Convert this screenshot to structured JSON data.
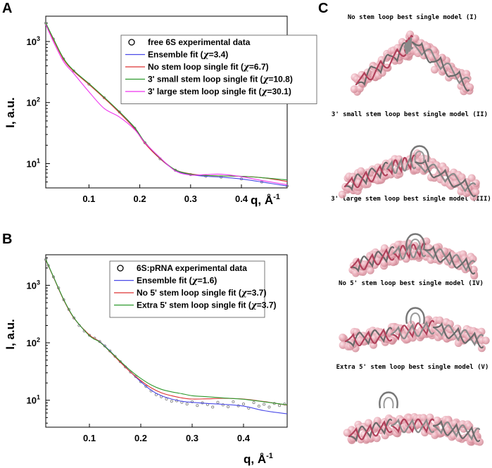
{
  "panel_c": {
    "letter": "C",
    "models": [
      {
        "title": "No stem loop best single model (I)"
      },
      {
        "title": "3' small stem loop best single model (II)"
      },
      {
        "title": "3' large stem loop best single model (III)"
      },
      {
        "title": "No 5' stem loop best single model (IV)"
      },
      {
        "title": "Extra 5' stem loop best single model (V)"
      }
    ]
  },
  "chart_data": [
    {
      "type": "line",
      "panel": "A",
      "title": "",
      "xlabel": "q, Å",
      "xlabel_sup": "-1",
      "ylabel": "I, a.u.",
      "xscale": "linear",
      "yscale": "log",
      "xlim": [
        0.015,
        0.49
      ],
      "ylim": [
        4,
        2600
      ],
      "xticks": [
        0.1,
        0.2,
        0.3,
        0.4
      ],
      "xtick_labels": [
        "0.1",
        "0.2",
        "0.3",
        "0.4"
      ],
      "yticks": [
        10,
        100,
        1000
      ],
      "ytick_labels": [
        "10",
        "10",
        "10"
      ],
      "ytick_exps": [
        "1",
        "2",
        "3"
      ],
      "legend_position": "top-right",
      "experimental": {
        "name": "free 6S experimental data",
        "marker": "open-circle",
        "color": "#888888",
        "x": [
          0.015,
          0.03,
          0.05,
          0.07,
          0.1,
          0.13,
          0.16,
          0.19,
          0.21,
          0.24,
          0.27,
          0.3,
          0.33,
          0.36,
          0.4,
          0.44,
          0.49
        ],
        "y": [
          2000,
          1100,
          520,
          330,
          200,
          120,
          70,
          38,
          22,
          12,
          7.8,
          6.6,
          6.2,
          6.0,
          5.6,
          5.0,
          4.3
        ]
      },
      "series": [
        {
          "name": "Ensemble fit",
          "chi": "3.4",
          "color": "#4a4ae8",
          "x": [
            0.015,
            0.03,
            0.05,
            0.07,
            0.1,
            0.13,
            0.16,
            0.19,
            0.21,
            0.24,
            0.27,
            0.3,
            0.33,
            0.36,
            0.4,
            0.44,
            0.49
          ],
          "y": [
            2000,
            1100,
            520,
            330,
            200,
            120,
            70,
            38,
            22,
            12,
            7.8,
            6.6,
            6.2,
            6.0,
            5.6,
            5.0,
            4.3
          ]
        },
        {
          "name": "No stem loop single fit",
          "chi": "6.7",
          "color": "#dd3333",
          "x": [
            0.015,
            0.03,
            0.05,
            0.07,
            0.1,
            0.13,
            0.16,
            0.19,
            0.21,
            0.24,
            0.27,
            0.3,
            0.33,
            0.36,
            0.4,
            0.44,
            0.49
          ],
          "y": [
            1980,
            1080,
            510,
            325,
            198,
            118,
            68,
            37,
            21.5,
            12,
            7.9,
            6.8,
            6.4,
            6.3,
            6.2,
            5.9,
            5.1
          ]
        },
        {
          "name": "3' small stem loop single fit",
          "chi": "10.8",
          "color": "#2e9a2e",
          "x": [
            0.015,
            0.03,
            0.05,
            0.07,
            0.1,
            0.13,
            0.16,
            0.19,
            0.21,
            0.24,
            0.27,
            0.3,
            0.33,
            0.36,
            0.4,
            0.44,
            0.49
          ],
          "y": [
            2020,
            1120,
            530,
            335,
            205,
            122,
            71,
            39,
            22.5,
            12.3,
            7.9,
            6.7,
            6.4,
            6.3,
            6.2,
            5.9,
            5.4
          ]
        },
        {
          "name": "3' large stem loop single fit",
          "chi": "30.1",
          "color": "#ee33ee",
          "x": [
            0.015,
            0.03,
            0.05,
            0.07,
            0.1,
            0.13,
            0.16,
            0.19,
            0.21,
            0.24,
            0.27,
            0.3,
            0.33,
            0.36,
            0.4,
            0.44,
            0.49
          ],
          "y": [
            1900,
            1000,
            470,
            300,
            150,
            80,
            58,
            36,
            22,
            12.5,
            7.6,
            6.5,
            6.6,
            6.7,
            6.1,
            5.3,
            4.5
          ]
        }
      ]
    },
    {
      "type": "line",
      "panel": "B",
      "title": "",
      "xlabel": "q, Å",
      "xlabel_sup": "-1",
      "ylabel": "I, a.u.",
      "xscale": "linear",
      "yscale": "log",
      "xlim": [
        0.015,
        0.485
      ],
      "ylim": [
        3.4,
        3400
      ],
      "xticks": [
        0.1,
        0.2,
        0.3,
        0.4
      ],
      "xtick_labels": [
        "0.1",
        "0.2",
        "0.3",
        "0.4"
      ],
      "yticks": [
        10,
        100,
        1000
      ],
      "ytick_labels": [
        "10",
        "10",
        "10"
      ],
      "ytick_exps": [
        "1",
        "2",
        "3"
      ],
      "legend_position": "top-right",
      "experimental": {
        "name": "6S:pRNA experimental data",
        "marker": "open-circle",
        "color": "#888888",
        "x": [
          0.015,
          0.02,
          0.03,
          0.04,
          0.05,
          0.06,
          0.07,
          0.08,
          0.09,
          0.1,
          0.11,
          0.12,
          0.13,
          0.14,
          0.15,
          0.16,
          0.17,
          0.18,
          0.19,
          0.2,
          0.21,
          0.22,
          0.23,
          0.24,
          0.25,
          0.26,
          0.27,
          0.28,
          0.29,
          0.3,
          0.31,
          0.32,
          0.33,
          0.34,
          0.35,
          0.36,
          0.37,
          0.38,
          0.39,
          0.4,
          0.41,
          0.42,
          0.43,
          0.44,
          0.45,
          0.46,
          0.47,
          0.48
        ],
        "y": [
          2800,
          2200,
          1400,
          900,
          560,
          380,
          270,
          200,
          160,
          135,
          120,
          105,
          88,
          72,
          58,
          47,
          38,
          31,
          26,
          21,
          17.5,
          14.5,
          12.5,
          11.5,
          10.5,
          9.6,
          9.8,
          9.2,
          8.6,
          9.4,
          8.1,
          9.0,
          8.4,
          7.6,
          9.2,
          8.3,
          7.7,
          9.4,
          8.0,
          8.6,
          7.3,
          9.1,
          7.9,
          8.5,
          7.6,
          8.8,
          8.1,
          8.6
        ]
      },
      "series": [
        {
          "name": "Ensemble fit",
          "chi": "1.6",
          "color": "#4a4ae8",
          "x": [
            0.015,
            0.03,
            0.05,
            0.07,
            0.1,
            0.12,
            0.14,
            0.16,
            0.18,
            0.2,
            0.22,
            0.24,
            0.26,
            0.28,
            0.3,
            0.33,
            0.36,
            0.4,
            0.44,
            0.485
          ],
          "y": [
            2800,
            1400,
            560,
            270,
            135,
            105,
            72,
            47,
            31,
            21,
            15,
            12,
            10.5,
            9.6,
            9.2,
            8.8,
            8.5,
            7.9,
            6.6,
            5.8
          ]
        },
        {
          "name": "No 5' stem loop single fit",
          "chi": "3.7",
          "color": "#dd3333",
          "x": [
            0.015,
            0.03,
            0.05,
            0.07,
            0.1,
            0.12,
            0.14,
            0.16,
            0.18,
            0.2,
            0.22,
            0.24,
            0.26,
            0.28,
            0.3,
            0.33,
            0.36,
            0.4,
            0.44,
            0.485
          ],
          "y": [
            2780,
            1390,
            555,
            268,
            137,
            104,
            70,
            46,
            31,
            22,
            16.5,
            13.5,
            12,
            11,
            10.5,
            10.6,
            10.8,
            10.5,
            9.5,
            8.2
          ]
        },
        {
          "name": "Extra 5' stem loop single fit",
          "chi": "3.7",
          "color": "#2e9a2e",
          "x": [
            0.015,
            0.03,
            0.05,
            0.07,
            0.1,
            0.12,
            0.14,
            0.16,
            0.18,
            0.2,
            0.22,
            0.24,
            0.26,
            0.28,
            0.3,
            0.33,
            0.36,
            0.4,
            0.44,
            0.485
          ],
          "y": [
            2820,
            1410,
            565,
            272,
            133,
            103,
            71,
            48,
            33,
            24,
            18.5,
            15.5,
            14,
            13,
            12,
            11.5,
            11,
            10.4,
            9.4,
            8.3
          ]
        }
      ]
    }
  ]
}
